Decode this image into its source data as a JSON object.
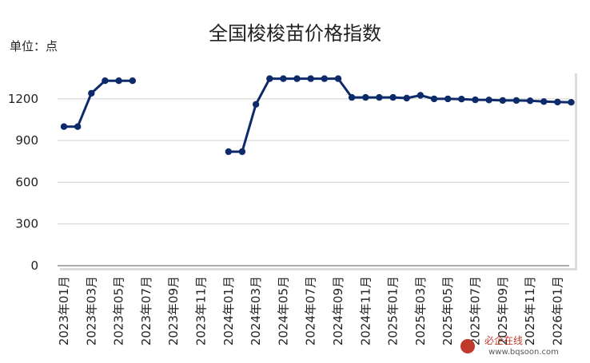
{
  "chart_data": {
    "type": "line",
    "title": "全国梭梭苗价格指数",
    "unit_label": "单位：点",
    "ylim": [
      0,
      1400
    ],
    "yticks": [
      "0",
      "300",
      "600",
      "900",
      "1200"
    ],
    "grid": true,
    "x_tick_labels": [
      "2023年01月",
      "2023年03月",
      "2023年05月",
      "2023年07月",
      "2023年09月",
      "2023年11月",
      "2024年01月",
      "2024年03月",
      "2024年05月",
      "2024年07月",
      "2024年09月",
      "2024年11月",
      "2025年01月",
      "2025年03月",
      "2025年05月",
      "2025年07月",
      "2025年09月",
      "2025年11月",
      "2026年01月"
    ],
    "series": [
      {
        "color": "#0d2a6b",
        "points": [
          {
            "x": "2023-01",
            "y": 1000
          },
          {
            "x": "2023-02",
            "y": 1000
          },
          {
            "x": "2023-03",
            "y": 1240
          },
          {
            "x": "2023-04",
            "y": 1330
          },
          {
            "x": "2023-05",
            "y": 1330
          },
          {
            "x": "2023-06",
            "y": 1330
          },
          {
            "x": "2024-01",
            "y": 820
          },
          {
            "x": "2024-02",
            "y": 820
          },
          {
            "x": "2024-03",
            "y": 1160
          },
          {
            "x": "2024-04",
            "y": 1345
          },
          {
            "x": "2024-05",
            "y": 1345
          },
          {
            "x": "2024-06",
            "y": 1345
          },
          {
            "x": "2024-07",
            "y": 1345
          },
          {
            "x": "2024-08",
            "y": 1345
          },
          {
            "x": "2024-09",
            "y": 1345
          },
          {
            "x": "2024-10",
            "y": 1210
          },
          {
            "x": "2024-11",
            "y": 1210
          },
          {
            "x": "2024-12",
            "y": 1210
          },
          {
            "x": "2025-01",
            "y": 1210
          },
          {
            "x": "2025-02",
            "y": 1205
          },
          {
            "x": "2025-03",
            "y": 1225
          },
          {
            "x": "2025-04",
            "y": 1200
          },
          {
            "x": "2025-05",
            "y": 1200
          },
          {
            "x": "2025-06",
            "y": 1198
          },
          {
            "x": "2025-07",
            "y": 1193
          },
          {
            "x": "2025-08",
            "y": 1192
          },
          {
            "x": "2025-09",
            "y": 1188
          },
          {
            "x": "2025-10",
            "y": 1188
          },
          {
            "x": "2025-11",
            "y": 1186
          },
          {
            "x": "2025-12",
            "y": 1180
          },
          {
            "x": "2026-01",
            "y": 1177
          },
          {
            "x": "2026-02",
            "y": 1175
          }
        ]
      }
    ]
  },
  "watermark": {
    "text": "必企在线",
    "url": "www.bqsoon.com"
  }
}
